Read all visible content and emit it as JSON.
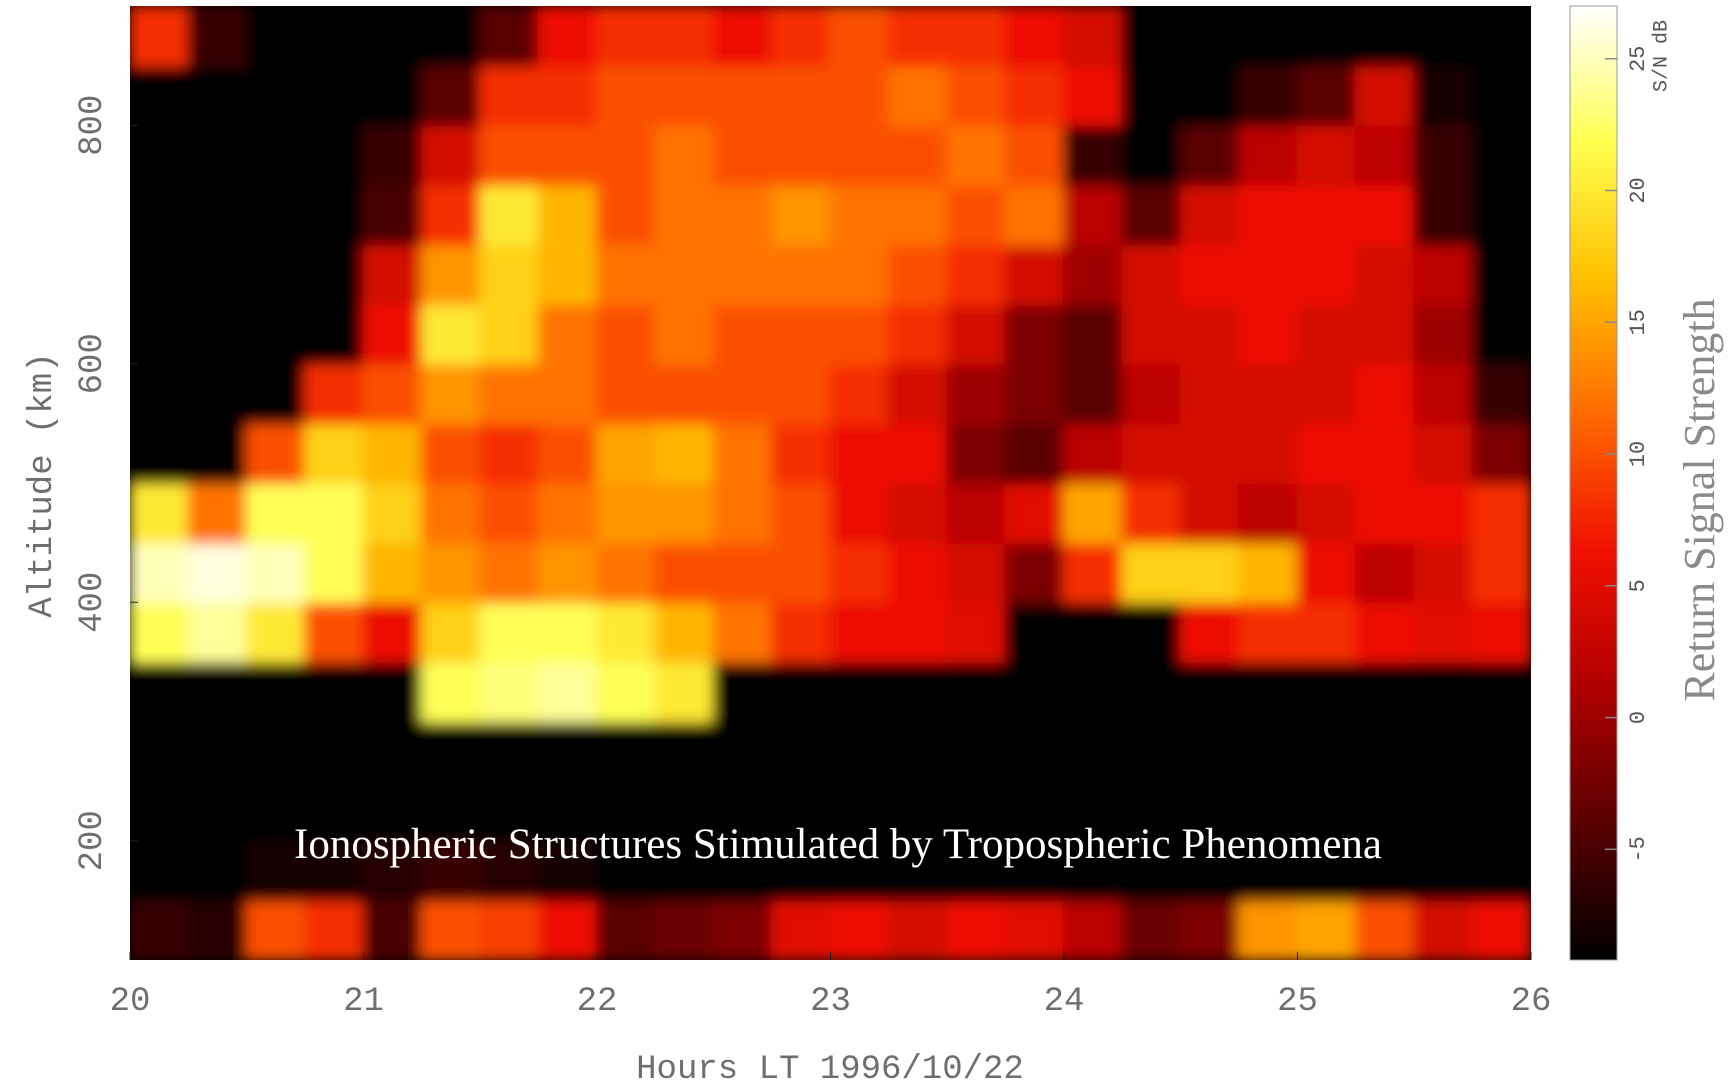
{
  "chart_data": {
    "type": "heatmap",
    "annotation": "Ionospheric Structures Stimulated by Tropospheric Phenomena",
    "xlabel": "Hours LT 1996/10/22",
    "ylabel": "Altitude (km)",
    "colorbar_label": "Return Signal Strength",
    "colorbar_unit": "S/N dB",
    "xlim": [
      20,
      26
    ],
    "xticks": [
      20,
      21,
      22,
      23,
      24,
      25,
      26
    ],
    "ylim": [
      100,
      900
    ],
    "yticks": [
      200,
      400,
      600,
      800
    ],
    "clim": [
      -9.2,
      27
    ],
    "cticks": [
      -5,
      0,
      5,
      10,
      15,
      20,
      25
    ],
    "colormap": [
      "#000000",
      "#5a0000",
      "#b00000",
      "#f01000",
      "#ff6a00",
      "#ffc000",
      "#ffff50",
      "#ffffff"
    ],
    "x": [
      20.125,
      20.375,
      20.625,
      20.875,
      21.125,
      21.375,
      21.625,
      21.875,
      22.125,
      22.375,
      22.625,
      22.875,
      23.125,
      23.375,
      23.625,
      23.875,
      24.125,
      24.375,
      24.625,
      24.875,
      25.125,
      25.375,
      25.625,
      25.875
    ],
    "y": [
      125,
      175,
      225,
      275,
      325,
      375,
      425,
      475,
      525,
      575,
      625,
      675,
      725,
      775,
      825,
      875
    ],
    "z": [
      [
        -6,
        -7,
        10,
        8,
        -5,
        10,
        9,
        6,
        -4,
        -3,
        -2,
        5,
        6,
        4,
        6,
        5,
        2,
        -3,
        -2,
        14,
        15,
        10,
        4,
        6
      ],
      [
        -9,
        -9,
        -8,
        -8,
        -7,
        -6,
        -7,
        -8,
        -9,
        -9,
        -9,
        -9,
        -9,
        -9,
        -9,
        -9,
        -9,
        -9,
        -9,
        -9,
        -9,
        -9,
        -9,
        -9
      ],
      [
        -9,
        -9,
        -9,
        -9,
        -9,
        -9,
        -9,
        -9,
        -9,
        -9,
        -9,
        -9,
        -9,
        -9,
        -9,
        -9,
        -9,
        -9,
        -9,
        -9,
        -9,
        -9,
        -9,
        -9
      ],
      [
        -9,
        -9,
        -9,
        -9,
        -9,
        -9,
        -9,
        -9,
        -9,
        -9,
        -9,
        -9,
        -9,
        -9,
        -9,
        -9,
        -9,
        -9,
        -9,
        -9,
        -9,
        -9,
        -9,
        -9
      ],
      [
        -9,
        -9,
        -9,
        -9,
        -9,
        22,
        23,
        24,
        22,
        20,
        -9,
        -9,
        -9,
        -9,
        -9,
        -9,
        -9,
        -9,
        -9,
        -9,
        -9,
        -9,
        -9,
        -9
      ],
      [
        22,
        24,
        20,
        10,
        6,
        18,
        22,
        22,
        20,
        16,
        12,
        8,
        6,
        6,
        5,
        -9,
        -9,
        -9,
        6,
        8,
        8,
        6,
        5,
        6
      ],
      [
        25,
        26,
        25,
        22,
        16,
        14,
        12,
        14,
        12,
        10,
        10,
        10,
        8,
        6,
        4,
        -2,
        8,
        18,
        18,
        16,
        6,
        2,
        4,
        8
      ],
      [
        20,
        12,
        22,
        22,
        18,
        12,
        10,
        12,
        14,
        14,
        12,
        10,
        6,
        4,
        2,
        5,
        15,
        8,
        4,
        2,
        4,
        6,
        6,
        8
      ],
      [
        -9,
        -9,
        10,
        18,
        16,
        10,
        8,
        10,
        15,
        16,
        12,
        8,
        6,
        6,
        -2,
        -4,
        2,
        4,
        4,
        4,
        6,
        6,
        4,
        -2
      ],
      [
        -9,
        -9,
        -9,
        8,
        10,
        14,
        12,
        12,
        10,
        10,
        10,
        10,
        8,
        4,
        0,
        -2,
        -4,
        2,
        4,
        4,
        4,
        6,
        2,
        -6
      ],
      [
        -9,
        -9,
        -9,
        -9,
        6,
        20,
        18,
        12,
        10,
        12,
        10,
        10,
        10,
        8,
        4,
        -2,
        -4,
        4,
        4,
        6,
        4,
        4,
        0,
        -9
      ],
      [
        -9,
        -9,
        -9,
        -9,
        4,
        14,
        18,
        16,
        12,
        12,
        12,
        12,
        12,
        10,
        8,
        4,
        0,
        4,
        6,
        6,
        6,
        4,
        2,
        -9
      ],
      [
        -9,
        -9,
        -9,
        -9,
        -5,
        8,
        20,
        16,
        10,
        12,
        12,
        14,
        12,
        12,
        10,
        12,
        2,
        -4,
        4,
        6,
        6,
        6,
        -6,
        -9
      ],
      [
        -9,
        -9,
        -9,
        -9,
        -6,
        4,
        10,
        10,
        10,
        12,
        10,
        10,
        10,
        10,
        12,
        10,
        -6,
        -9,
        -4,
        2,
        4,
        2,
        -6,
        -9
      ],
      [
        -9,
        -9,
        -9,
        -9,
        -9,
        -4,
        8,
        8,
        10,
        10,
        10,
        10,
        10,
        12,
        10,
        8,
        6,
        -9,
        -9,
        -6,
        -4,
        4,
        -8,
        -9
      ],
      [
        8,
        -6,
        -9,
        -9,
        -9,
        -9,
        -4,
        6,
        8,
        8,
        6,
        8,
        10,
        8,
        8,
        6,
        4,
        -9,
        -9,
        -9,
        -9,
        -9,
        -9,
        -9
      ]
    ]
  }
}
